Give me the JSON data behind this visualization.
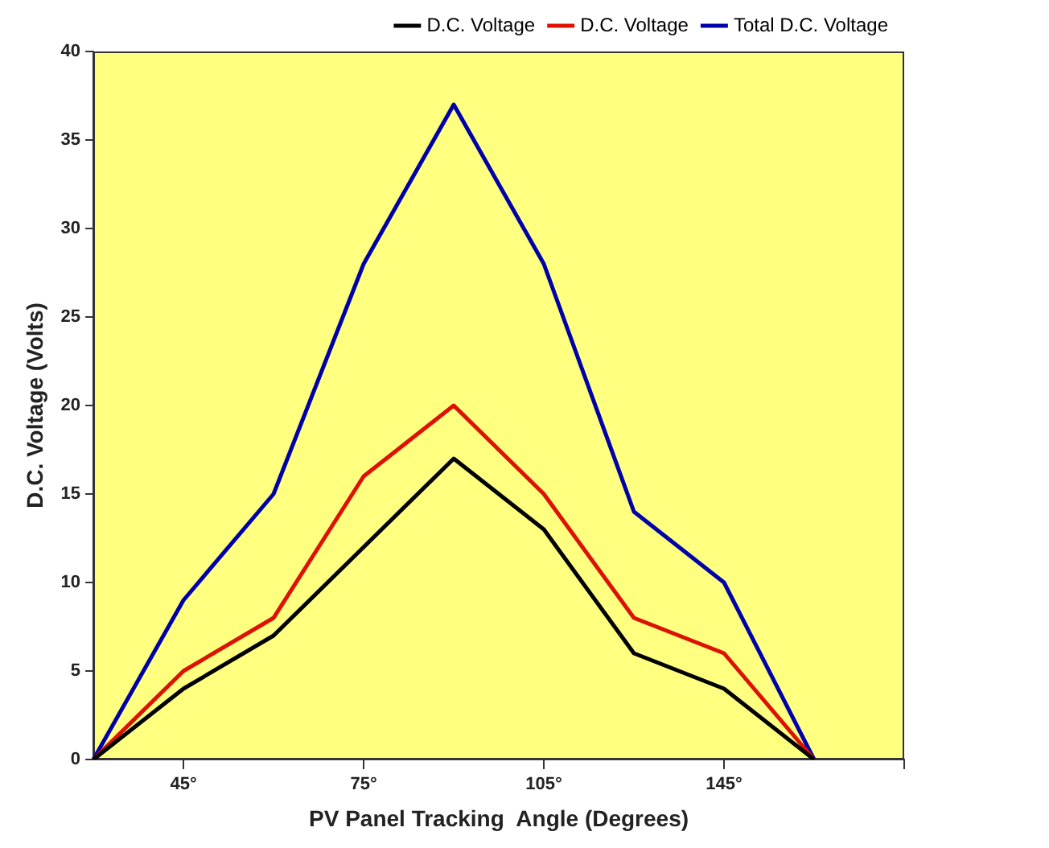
{
  "chart_data": {
    "type": "line",
    "xlabel": "PV Panel Tracking  Angle (Degrees)",
    "ylabel": "D.C. Voltage (Volts)",
    "categories": [
      null,
      "45°",
      null,
      "75°",
      null,
      "105°",
      null,
      "145°",
      null,
      null
    ],
    "series": [
      {
        "name": "D.C. Voltage",
        "color": "#000000",
        "values": [
          0,
          4,
          7,
          12,
          17,
          13,
          6,
          4,
          0,
          null
        ]
      },
      {
        "name": "D.C. Voltage",
        "color": "#dd1100",
        "values": [
          0,
          5,
          8,
          16,
          20,
          15,
          8,
          6,
          0,
          null
        ]
      },
      {
        "name": "Total D.C. Voltage",
        "color": "#0000aa",
        "values": [
          0,
          9,
          15,
          28,
          37,
          28,
          14,
          10,
          0,
          null
        ]
      }
    ],
    "ylim": [
      0,
      40
    ],
    "yticks": [
      0,
      5,
      10,
      15,
      20,
      25,
      30,
      35,
      40
    ],
    "grid": false,
    "legend": "top right",
    "marker": "none",
    "line_style": "solid"
  }
}
